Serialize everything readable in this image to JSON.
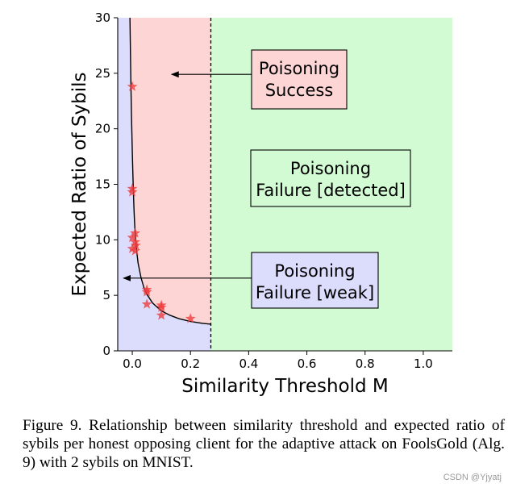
{
  "chart_data": {
    "type": "scatter",
    "xlabel": "Similarity Threshold M",
    "ylabel": "Expected Ratio of Sybils",
    "xlim": [
      -0.05,
      1.1
    ],
    "ylim": [
      0,
      30
    ],
    "x_ticks": [
      0.0,
      0.2,
      0.4,
      0.6,
      0.8,
      1.0
    ],
    "x_tick_labels": [
      "0.0",
      "0.2",
      "0.4",
      "0.6",
      "0.8",
      "1.0"
    ],
    "y_ticks": [
      0,
      5,
      10,
      15,
      20,
      25,
      30
    ],
    "y_tick_labels": [
      "0",
      "5",
      "10",
      "15",
      "20",
      "25",
      "30"
    ],
    "grid": false,
    "detection_threshold_x": 0.27,
    "regions": [
      {
        "id": "weak",
        "color": "#dcdcfc",
        "x_range": [
          -0.05,
          0.27
        ],
        "below_curve": true
      },
      {
        "id": "success",
        "color": "#fdd5d5",
        "x_range": [
          -0.05,
          0.27
        ],
        "above_curve": true
      },
      {
        "id": "detected",
        "color": "#d3fbd3",
        "x_range": [
          0.27,
          1.1
        ]
      }
    ],
    "curve": {
      "color": "#000000",
      "x": [
        -0.008,
        -0.005,
        -0.003,
        -0.001,
        0.0,
        0.002,
        0.004,
        0.006,
        0.008,
        0.01,
        0.015,
        0.02,
        0.03,
        0.04,
        0.05,
        0.07,
        0.1,
        0.13,
        0.16,
        0.2,
        0.24,
        0.27
      ],
      "y": [
        30,
        24.5,
        21.5,
        19.2,
        18.0,
        16.0,
        14.2,
        12.7,
        11.5,
        10.6,
        9.0,
        7.9,
        6.6,
        5.7,
        5.1,
        4.3,
        3.6,
        3.2,
        2.9,
        2.65,
        2.48,
        2.4
      ]
    },
    "points": [
      {
        "x": 0.0,
        "y": 23.8
      },
      {
        "x": 0.0,
        "y": 14.6
      },
      {
        "x": 0.0,
        "y": 14.3
      },
      {
        "x": 0.01,
        "y": 10.6
      },
      {
        "x": 0.0,
        "y": 10.2
      },
      {
        "x": 0.01,
        "y": 9.8
      },
      {
        "x": 0.012,
        "y": 9.5
      },
      {
        "x": 0.0,
        "y": 9.2
      },
      {
        "x": 0.01,
        "y": 9.0
      },
      {
        "x": 0.05,
        "y": 5.5
      },
      {
        "x": 0.05,
        "y": 5.3
      },
      {
        "x": 0.05,
        "y": 4.2
      },
      {
        "x": 0.1,
        "y": 4.1
      },
      {
        "x": 0.1,
        "y": 3.9
      },
      {
        "x": 0.1,
        "y": 3.2
      },
      {
        "x": 0.2,
        "y": 2.9
      }
    ],
    "point_color": "#ee3a3a",
    "annotations": [
      {
        "id": "success",
        "lines": [
          "Poisoning",
          "Success"
        ],
        "fill": "#fdd5d5",
        "arrow": true,
        "arrow_to": [
          0.135,
          24.9
        ],
        "arrow_from": [
          0.42,
          24.9
        ]
      },
      {
        "id": "detected",
        "lines": [
          "Poisoning",
          "Failure [detected]"
        ],
        "fill": "#d3fbd3",
        "arrow": false
      },
      {
        "id": "weak",
        "lines": [
          "Poisoning",
          "Failure [weak]"
        ],
        "fill": "#dcdcfc",
        "arrow": true,
        "arrow_to": [
          -0.03,
          6.55
        ],
        "arrow_from": [
          0.42,
          6.55
        ]
      }
    ]
  },
  "caption": {
    "text": "Figure 9. Relationship between similarity threshold and expected ratio of sybils per honest opposing client for the adaptive attack on FoolsGold (Alg. 9) with 2 sybils on MNIST."
  },
  "watermark": {
    "text": "CSDN @Yjyatj"
  }
}
